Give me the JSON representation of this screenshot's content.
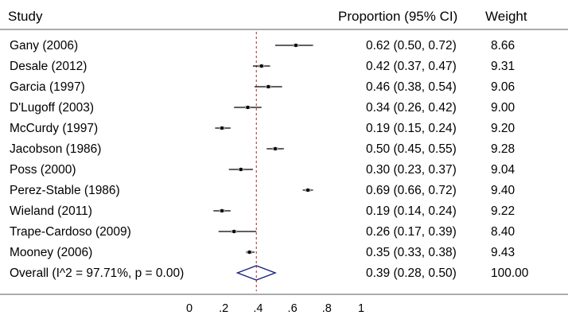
{
  "chart_data": {
    "type": "forest",
    "headers": {
      "study": "Study",
      "estimate": "Proportion (95% CI)",
      "weight": "Weight"
    },
    "studies": [
      {
        "label": "Gany (2006)",
        "est": 0.62,
        "lo": 0.5,
        "hi": 0.72,
        "ci_text": "0.62 (0.50, 0.72)",
        "weight": "8.66"
      },
      {
        "label": "Desale (2012)",
        "est": 0.42,
        "lo": 0.37,
        "hi": 0.47,
        "ci_text": "0.42 (0.37, 0.47)",
        "weight": "9.31"
      },
      {
        "label": "Garcia (1997)",
        "est": 0.46,
        "lo": 0.38,
        "hi": 0.54,
        "ci_text": "0.46 (0.38, 0.54)",
        "weight": "9.06"
      },
      {
        "label": "D'Lugoff (2003)",
        "est": 0.34,
        "lo": 0.26,
        "hi": 0.42,
        "ci_text": "0.34 (0.26, 0.42)",
        "weight": "9.00"
      },
      {
        "label": "McCurdy (1997)",
        "est": 0.19,
        "lo": 0.15,
        "hi": 0.24,
        "ci_text": "0.19 (0.15, 0.24)",
        "weight": "9.20"
      },
      {
        "label": "Jacobson (1986)",
        "est": 0.5,
        "lo": 0.45,
        "hi": 0.55,
        "ci_text": "0.50 (0.45, 0.55)",
        "weight": "9.28"
      },
      {
        "label": "Poss (2000)",
        "est": 0.3,
        "lo": 0.23,
        "hi": 0.37,
        "ci_text": "0.30 (0.23, 0.37)",
        "weight": "9.04"
      },
      {
        "label": "Perez-Stable (1986)",
        "est": 0.69,
        "lo": 0.66,
        "hi": 0.72,
        "ci_text": "0.69 (0.66, 0.72)",
        "weight": "9.40"
      },
      {
        "label": "Wieland (2011)",
        "est": 0.19,
        "lo": 0.14,
        "hi": 0.24,
        "ci_text": "0.19 (0.14, 0.24)",
        "weight": "9.22"
      },
      {
        "label": "Trape-Cardoso (2009)",
        "est": 0.26,
        "lo": 0.17,
        "hi": 0.39,
        "ci_text": "0.26 (0.17, 0.39)",
        "weight": "8.40"
      },
      {
        "label": "Mooney (2006)",
        "est": 0.35,
        "lo": 0.33,
        "hi": 0.38,
        "ci_text": "0.35 (0.33, 0.38)",
        "weight": "9.43"
      }
    ],
    "overall": {
      "label": "Overall  (I^2 = 97.71%, p = 0.00)",
      "est": 0.39,
      "lo": 0.28,
      "hi": 0.5,
      "ci_text": "0.39 (0.28, 0.50)",
      "weight": "100.00"
    },
    "x_ticks": [
      {
        "value": 0,
        "label": "0"
      },
      {
        "value": 0.2,
        "label": ".2"
      },
      {
        "value": 0.4,
        "label": ".4"
      },
      {
        "value": 0.6,
        "label": ".6"
      },
      {
        "value": 0.8,
        "label": ".8"
      },
      {
        "value": 1,
        "label": "1"
      }
    ],
    "xlim": [
      0,
      1
    ],
    "reference_line": 0.39,
    "colors": {
      "reference_line": "#b22222",
      "diamond": "#1a237e",
      "separator": "#7a7a7a",
      "ink": "#000000"
    }
  }
}
